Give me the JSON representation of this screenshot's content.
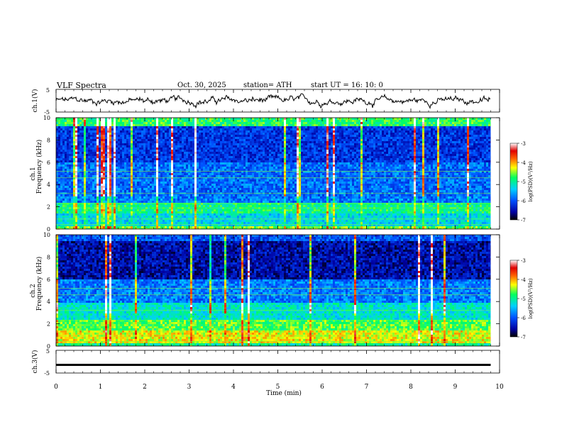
{
  "header": {
    "title": "VLF  Spectra",
    "date": "Oct. 30, 2025",
    "station": "station= ATH",
    "start": "start  UT  =   16: 10: 0"
  },
  "chart_data": [
    {
      "type": "line",
      "name": "ch1-waveform",
      "ylabel": "ch.1(V)",
      "ylim": [
        -5,
        5
      ],
      "yticks": [
        5,
        -5
      ],
      "xlim": [
        0,
        10
      ],
      "description_values": {
        "mean": 0,
        "amplitude_range": [
          -2,
          3
        ]
      }
    },
    {
      "type": "heatmap",
      "name": "ch1-spectrogram",
      "ylabel_channel": "ch.1",
      "ylabel": "Frequency  (kHz)",
      "ylim": [
        0,
        10
      ],
      "yticks": [
        0,
        2,
        4,
        6,
        8,
        10
      ],
      "xlim": [
        0,
        10
      ],
      "data_end_min": 9.8,
      "colorbar": {
        "label": "log(PSD)(V²/Hz)",
        "range": [
          -7,
          -3
        ],
        "ticks": [
          -3,
          -4,
          -5,
          -6,
          -7
        ]
      }
    },
    {
      "type": "heatmap",
      "name": "ch2-spectrogram",
      "ylabel_channel": "ch.2",
      "ylabel": "Frequency  (kHz)",
      "ylim": [
        0,
        10
      ],
      "yticks": [
        0,
        2,
        4,
        6,
        8,
        10
      ],
      "xlim": [
        0,
        10
      ],
      "data_end_min": 9.8,
      "colorbar": {
        "label": "log(PSD)(V²/Hz)",
        "range": [
          -7,
          -3
        ],
        "ticks": [
          -3,
          -4,
          -5,
          -6,
          -7
        ]
      }
    },
    {
      "type": "line",
      "name": "ch3-waveform",
      "ylabel": "ch.3(V)",
      "ylim": [
        -5,
        5
      ],
      "yticks": [
        5,
        -5
      ],
      "xlim": [
        0,
        10
      ],
      "description_values": {
        "mean": -1.4
      }
    }
  ],
  "xaxis": {
    "label": "Time  (min)",
    "ticks": [
      "0",
      "1",
      "2",
      "3",
      "4",
      "5",
      "6",
      "7",
      "8",
      "9",
      "10"
    ]
  }
}
